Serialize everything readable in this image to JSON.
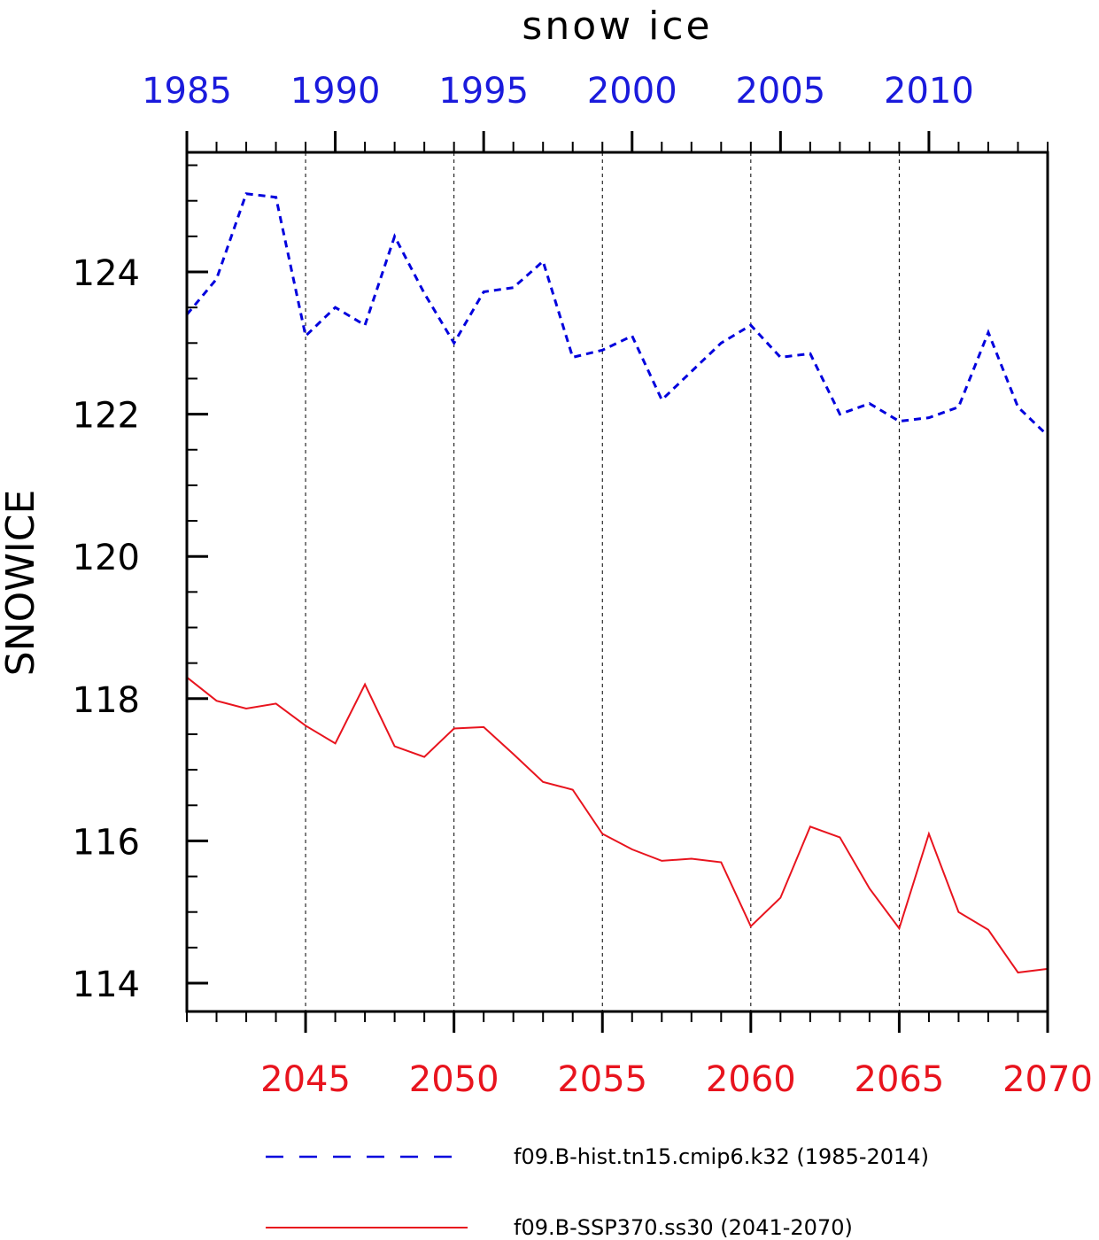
{
  "chart_data": {
    "type": "line",
    "title": "snow ice",
    "ylabel": "SNOWICE",
    "ylim": [
      113.6,
      125.7
    ],
    "yticks": [
      114,
      116,
      118,
      120,
      122,
      124
    ],
    "y_minor_step": 0.5,
    "grid": "vertical dashed at major x ticks",
    "top_axis": {
      "range": [
        1985,
        2014
      ],
      "ticks": [
        1985,
        1990,
        1995,
        2000,
        2005,
        2010
      ],
      "color": "#1a1adc"
    },
    "bottom_axis": {
      "range": [
        2041,
        2070
      ],
      "ticks": [
        2045,
        2050,
        2055,
        2060,
        2065,
        2070
      ],
      "color": "#e8141e"
    },
    "series": [
      {
        "name": "f09.B-hist.tn15.cmip6.k32 (1985-2014)",
        "axis": "top",
        "style": "dashed",
        "color": "#0000dd",
        "x": [
          1985,
          1986,
          1987,
          1988,
          1989,
          1990,
          1991,
          1992,
          1993,
          1994,
          1995,
          1996,
          1997,
          1998,
          1999,
          2000,
          2001,
          2002,
          2003,
          2004,
          2005,
          2006,
          2007,
          2008,
          2009,
          2010,
          2011,
          2012,
          2013,
          2014
        ],
        "values": [
          123.4,
          123.9,
          125.1,
          125.05,
          123.1,
          123.5,
          123.25,
          124.5,
          123.7,
          123.0,
          123.72,
          123.78,
          124.15,
          122.8,
          122.9,
          123.1,
          122.2,
          122.6,
          123.0,
          123.25,
          122.8,
          122.85,
          122.0,
          122.15,
          121.9,
          121.95,
          122.1,
          123.15,
          122.1,
          121.7
        ]
      },
      {
        "name": "f09.B-SSP370.ss30 (2041-2070)",
        "axis": "bottom",
        "style": "solid",
        "color": "#e8141e",
        "x": [
          2041,
          2042,
          2043,
          2044,
          2045,
          2046,
          2047,
          2048,
          2049,
          2050,
          2051,
          2052,
          2053,
          2054,
          2055,
          2056,
          2057,
          2058,
          2059,
          2060,
          2061,
          2062,
          2063,
          2064,
          2065,
          2066,
          2067,
          2068,
          2069,
          2070
        ],
        "values": [
          118.3,
          117.97,
          117.86,
          117.93,
          117.62,
          117.37,
          118.2,
          117.33,
          117.18,
          117.58,
          117.6,
          117.22,
          116.83,
          116.72,
          116.1,
          115.88,
          115.72,
          115.75,
          115.7,
          114.8,
          115.2,
          116.2,
          116.05,
          115.33,
          114.77,
          116.1,
          115.0,
          114.75,
          114.15,
          114.2
        ]
      }
    ],
    "legend": {
      "position": "bottom"
    }
  }
}
